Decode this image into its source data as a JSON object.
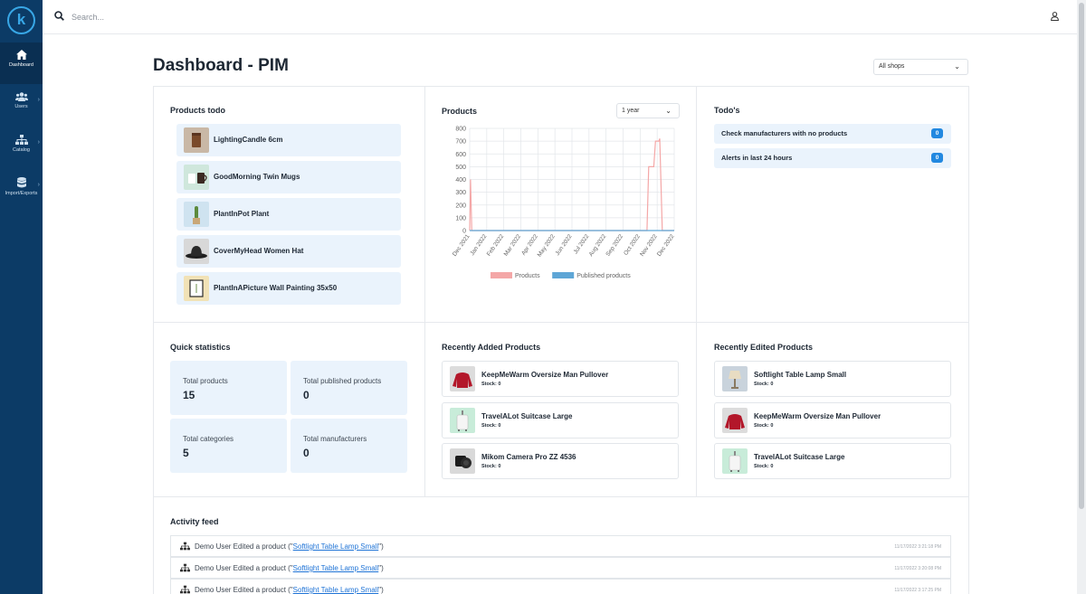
{
  "sidebar": {
    "logo_letter": "k",
    "items": [
      {
        "label": "Dashboard",
        "icon": "home-icon"
      },
      {
        "label": "Users",
        "icon": "users-icon"
      },
      {
        "label": "Catalog",
        "icon": "sitemap-icon"
      },
      {
        "label": "Import/Exports",
        "icon": "database-icon"
      }
    ]
  },
  "topbar": {
    "search_placeholder": "Search..."
  },
  "page": {
    "title": "Dashboard - PIM",
    "shop_filter": "All shops"
  },
  "products_todo": {
    "title": "Products todo",
    "items": [
      {
        "name": "LightingCandle 6cm"
      },
      {
        "name": "GoodMorning Twin Mugs"
      },
      {
        "name": "PlantInPot Plant"
      },
      {
        "name": "CoverMyHead Women Hat"
      },
      {
        "name": "PlantInAPicture Wall Painting 35x50"
      }
    ]
  },
  "products_chart": {
    "title": "Products",
    "range": "1 year"
  },
  "todos": {
    "title": "Todo's",
    "items": [
      {
        "label": "Check manufacturers with no products",
        "count": "0"
      },
      {
        "label": "Alerts in last 24 hours",
        "count": "0"
      }
    ]
  },
  "quick_stats": {
    "title": "Quick statistics",
    "items": [
      {
        "label": "Total products",
        "value": "15"
      },
      {
        "label": "Total published products",
        "value": "0"
      },
      {
        "label": "Total categories",
        "value": "5"
      },
      {
        "label": "Total manufacturers",
        "value": "0"
      }
    ]
  },
  "recently_added": {
    "title": "Recently Added Products",
    "items": [
      {
        "name": "KeepMeWarm Oversize Man Pullover",
        "stock": "Stock: 0"
      },
      {
        "name": "TravelALot Suitcase Large",
        "stock": "Stock: 0"
      },
      {
        "name": "Mikom Camera Pro ZZ 4536",
        "stock": "Stock: 0"
      }
    ]
  },
  "recently_edited": {
    "title": "Recently Edited Products",
    "items": [
      {
        "name": "Softlight Table Lamp Small",
        "stock": "Stock: 0"
      },
      {
        "name": "KeepMeWarm Oversize Man Pullover",
        "stock": "Stock: 0"
      },
      {
        "name": "TravelALot Suitcase Large",
        "stock": "Stock: 0"
      }
    ]
  },
  "activity": {
    "title": "Activity feed",
    "items": [
      {
        "prefix": "Demo User Edited a product (\"",
        "link": "Softlight Table Lamp Small",
        "suffix": "\")",
        "time": "11/17/2022 3:21:18 PM"
      },
      {
        "prefix": "Demo User Edited a product (\"",
        "link": "Softlight Table Lamp Small",
        "suffix": "\")",
        "time": "11/17/2022 3:20:08 PM"
      },
      {
        "prefix": "Demo User Edited a product (\"",
        "link": "Softlight Table Lamp Small",
        "suffix": "\")",
        "time": "11/17/2022 3:17:25 PM"
      }
    ]
  },
  "chart_data": {
    "type": "line",
    "x": [
      "Dec 2021",
      "Jan 2022",
      "Feb 2022",
      "Mar 2022",
      "Apr 2022",
      "May 2022",
      "Jun 2022",
      "Jul 2022",
      "Aug 2022",
      "Sep 2022",
      "Oct 2022",
      "Nov 2022",
      "Dec 2022"
    ],
    "ylim": [
      0,
      800
    ],
    "yticks": [
      0,
      100,
      200,
      300,
      400,
      500,
      600,
      700,
      800
    ],
    "grid": true,
    "legend_position": "bottom",
    "series": [
      {
        "name": "Products",
        "color": "#f4a7a7",
        "points": [
          [
            0,
            0
          ],
          [
            0.05,
            400
          ],
          [
            0.12,
            0
          ],
          [
            10.4,
            0
          ],
          [
            10.5,
            500
          ],
          [
            10.8,
            500
          ],
          [
            10.9,
            700
          ],
          [
            11.1,
            700
          ],
          [
            11.15,
            720
          ],
          [
            11.3,
            0
          ],
          [
            12,
            0
          ]
        ]
      },
      {
        "name": "Published products",
        "color": "#5ea6d6",
        "points": [
          [
            0,
            0
          ],
          [
            12,
            0
          ]
        ]
      }
    ]
  }
}
